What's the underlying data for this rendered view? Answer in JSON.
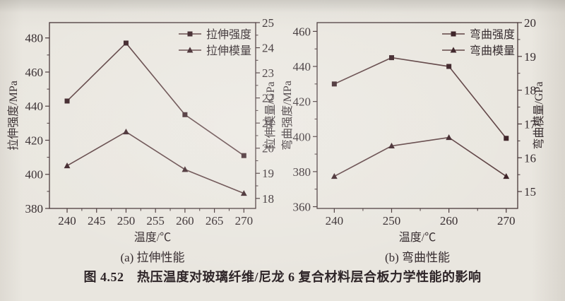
{
  "page": {
    "caption": "图 4.52　热压温度对玻璃纤维/尼龙 6 复合材料层合板力学性能的影响"
  },
  "colors": {
    "paper": "#e9e6df",
    "ink": "#362c2f",
    "axis": "#473638",
    "series_line": "#5e4243",
    "marker": "#3d2328"
  },
  "chart_data": [
    {
      "type": "line",
      "title": "(a) 拉伸性能",
      "xlabel": "温度/℃",
      "ylabel_left": "拉伸强度/MPa",
      "ylabel_right": "拉伸模量/GPa",
      "xlim": [
        237,
        272
      ],
      "xticks_major": [
        240,
        245,
        250,
        255,
        260,
        265,
        270
      ],
      "xticks_minor": [
        242.5,
        247.5,
        252.5,
        257.5,
        262.5,
        267.5
      ],
      "ylim_left": [
        380,
        489
      ],
      "yticks_left": [
        380,
        400,
        420,
        440,
        460,
        480
      ],
      "yminor_left": [
        390,
        410,
        430,
        450,
        470
      ],
      "ylim_right": [
        17.6,
        25
      ],
      "yticks_right": [
        18,
        19,
        20,
        21,
        22,
        23,
        24,
        25
      ],
      "yminor_right": [
        18.5,
        19.5,
        20.5,
        21.5,
        22.5,
        23.5,
        24.5
      ],
      "x": [
        240,
        250,
        260,
        270
      ],
      "series": [
        {
          "name": "拉伸强度",
          "axis": "left",
          "marker": "square",
          "values": [
            443,
            477,
            435,
            411
          ]
        },
        {
          "name": "拉伸模量",
          "axis": "right",
          "marker": "triangle",
          "values": [
            19.3,
            20.65,
            19.15,
            18.2
          ]
        }
      ],
      "legend_position": "top-right-inside",
      "grid": false
    },
    {
      "type": "line",
      "title": "(b) 弯曲性能",
      "xlabel": "温度/℃",
      "ylabel_left": "弯曲强度/MPa",
      "ylabel_right": "弯曲模量/GPa",
      "xlim": [
        237,
        272
      ],
      "xticks_major": [
        240,
        250,
        260,
        270
      ],
      "xticks_minor": [
        245,
        255,
        265
      ],
      "ylim_left": [
        359,
        465
      ],
      "yticks_left": [
        360,
        380,
        400,
        420,
        440,
        460
      ],
      "yminor_left": [
        370,
        390,
        410,
        430,
        450
      ],
      "ylim_right": [
        14.5,
        20
      ],
      "yticks_right": [
        15,
        16,
        17,
        18,
        19,
        20
      ],
      "yminor_right": [
        15.5,
        16.5,
        17.5,
        18.5,
        19.5
      ],
      "x": [
        240,
        250,
        260,
        270
      ],
      "series": [
        {
          "name": "弯曲强度",
          "axis": "left",
          "marker": "square",
          "values": [
            430,
            445,
            440,
            399
          ]
        },
        {
          "name": "弯曲模量",
          "axis": "right",
          "marker": "triangle",
          "values": [
            15.45,
            16.35,
            16.6,
            15.45
          ]
        }
      ],
      "legend_position": "top-right-inside",
      "grid": false
    }
  ]
}
